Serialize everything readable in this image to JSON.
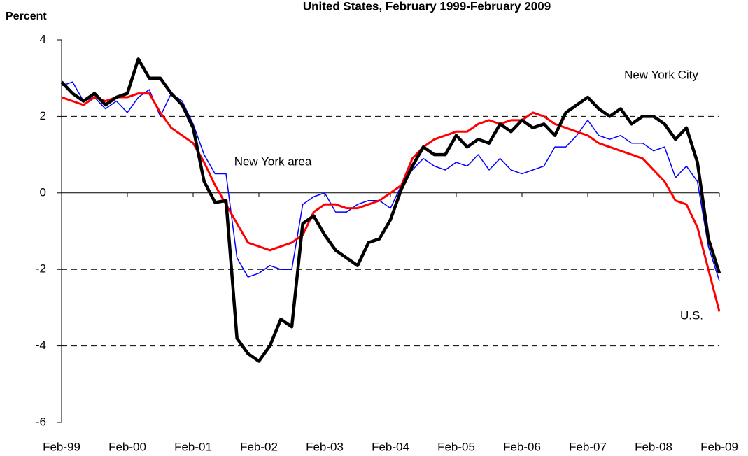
{
  "chart_data": {
    "type": "line",
    "title": "United States, February 1999-February 2009",
    "y_label": "Percent",
    "categories": [
      "Feb-99",
      null,
      null,
      null,
      null,
      null,
      "Feb-00",
      null,
      null,
      null,
      null,
      null,
      "Feb-01",
      null,
      null,
      null,
      null,
      null,
      "Feb-02",
      null,
      null,
      null,
      null,
      null,
      "Feb-03",
      null,
      null,
      null,
      null,
      null,
      "Feb-04",
      null,
      null,
      null,
      null,
      null,
      "Feb-05",
      null,
      null,
      null,
      null,
      null,
      "Feb-06",
      null,
      null,
      null,
      null,
      null,
      "Feb-07",
      null,
      null,
      null,
      null,
      null,
      "Feb-08",
      null,
      null,
      null,
      null,
      null,
      "Feb-09"
    ],
    "series": [
      {
        "name": "New York area",
        "color": "#0000ff",
        "values": [
          2.8,
          2.9,
          2.4,
          2.5,
          2.2,
          2.4,
          2.1,
          2.5,
          2.7,
          2.0,
          2.6,
          2.4,
          1.8,
          1.0,
          0.5,
          0.5,
          -1.7,
          -2.2,
          -2.1,
          -1.9,
          -2.0,
          -2.0,
          -0.3,
          -0.1,
          0.0,
          -0.5,
          -0.5,
          -0.3,
          -0.2,
          -0.2,
          -0.4,
          0.2,
          0.6,
          0.9,
          0.7,
          0.6,
          0.8,
          0.7,
          1.0,
          0.6,
          0.9,
          0.6,
          0.5,
          0.6,
          0.7,
          1.2,
          1.2,
          1.5,
          1.9,
          1.5,
          1.4,
          1.5,
          1.3,
          1.3,
          1.1,
          1.2,
          0.4,
          0.7,
          0.3,
          -1.4,
          -2.3
        ]
      },
      {
        "name": "U.S.",
        "color": "#ff0000",
        "values": [
          2.5,
          2.4,
          2.3,
          2.5,
          2.4,
          2.5,
          2.5,
          2.6,
          2.6,
          2.1,
          1.7,
          1.5,
          1.3,
          0.8,
          0.2,
          -0.3,
          -0.8,
          -1.3,
          -1.4,
          -1.5,
          -1.4,
          -1.3,
          -1.1,
          -0.5,
          -0.3,
          -0.3,
          -0.4,
          -0.4,
          -0.3,
          -0.2,
          0.0,
          0.2,
          0.9,
          1.2,
          1.4,
          1.5,
          1.6,
          1.6,
          1.8,
          1.9,
          1.8,
          1.9,
          1.9,
          2.1,
          2.0,
          1.8,
          1.7,
          1.6,
          1.5,
          1.3,
          1.2,
          1.1,
          1.0,
          0.9,
          0.6,
          0.3,
          -0.2,
          -0.3,
          -0.9,
          -2.0,
          -3.1
        ]
      },
      {
        "name": "New York City",
        "color": "#000000",
        "values": [
          2.9,
          2.6,
          2.4,
          2.6,
          2.3,
          2.5,
          2.6,
          3.5,
          3.0,
          3.0,
          2.6,
          2.3,
          1.7,
          0.3,
          -0.25,
          -0.2,
          -3.8,
          -4.2,
          -4.4,
          -4.0,
          -3.3,
          -3.5,
          -0.8,
          -0.6,
          -1.1,
          -1.5,
          -1.7,
          -1.9,
          -1.3,
          -1.2,
          -0.7,
          0.1,
          0.7,
          1.2,
          1.0,
          1.0,
          1.5,
          1.2,
          1.4,
          1.3,
          1.8,
          1.6,
          1.9,
          1.7,
          1.8,
          1.5,
          2.1,
          2.3,
          2.5,
          2.2,
          2.0,
          2.2,
          1.8,
          2.0,
          2.0,
          1.8,
          1.4,
          1.7,
          0.8,
          -1.2,
          -2.1
        ]
      }
    ],
    "ylim": [
      -6,
      4
    ],
    "yticks": [
      -6,
      -4,
      -2,
      0,
      2,
      4
    ],
    "grid": true
  }
}
